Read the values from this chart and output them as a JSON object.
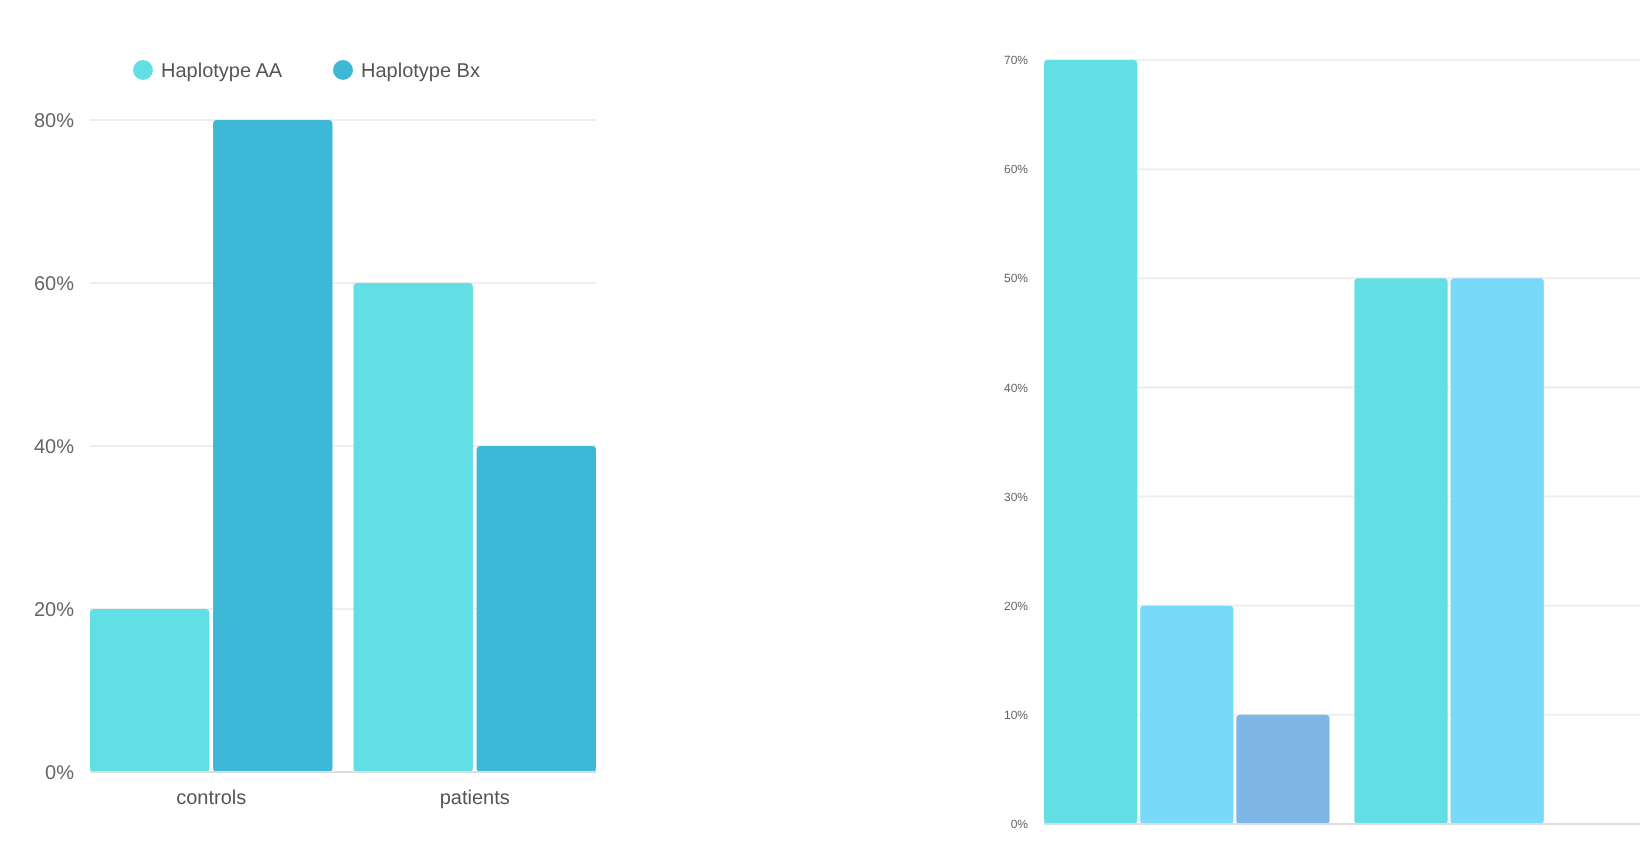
{
  "chart_data": [
    {
      "type": "bar",
      "categories": [
        "controls",
        "patients"
      ],
      "series": [
        {
          "name": "Haplotype AA",
          "color": "#62dfe4",
          "values": [
            20,
            60
          ]
        },
        {
          "name": "Haplotype Bx",
          "color": "#3db8d6",
          "values": [
            80,
            40
          ]
        }
      ],
      "ylim": [
        0,
        80
      ],
      "yticks": [
        {
          "value": 0,
          "label": "0%"
        },
        {
          "value": 20,
          "label": "20%"
        },
        {
          "value": 40,
          "label": "40%"
        },
        {
          "value": 60,
          "label": "60%"
        },
        {
          "value": 80,
          "label": "80%"
        }
      ],
      "grid": "y",
      "legend": "top"
    },
    {
      "type": "bar",
      "categories": [
        null,
        null
      ],
      "series": [
        {
          "color": "#62dfe4",
          "values": [
            70,
            50
          ]
        },
        {
          "color": "#78d9f8",
          "values": [
            20,
            50
          ]
        },
        {
          "color": "#7fb6e8",
          "values": [
            10,
            null
          ]
        }
      ],
      "ylim": [
        0,
        70
      ],
      "yticks": [
        {
          "value": 0,
          "label": "0%"
        },
        {
          "value": 10,
          "label": "10%"
        },
        {
          "value": 20,
          "label": "20%"
        },
        {
          "value": 30,
          "label": "30%"
        },
        {
          "value": 40,
          "label": "40%"
        },
        {
          "value": 50,
          "label": "50%"
        },
        {
          "value": 60,
          "label": "60%"
        },
        {
          "value": 70,
          "label": "70%"
        }
      ],
      "grid": "y",
      "legend": false
    }
  ]
}
